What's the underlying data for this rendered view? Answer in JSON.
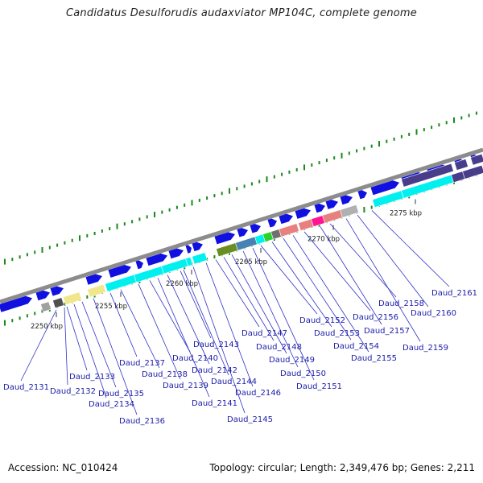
{
  "title": "Candidatus Desulforudis audaxviator MP104C, complete genome",
  "footer": {
    "accession": "Accession: NC_010424",
    "summary": "Topology: circular; Length: 2,349,476 bp; Genes: 2,211"
  },
  "scale_labels": [
    "2250 kbp",
    "2255 kbp",
    "2260 kbp",
    "2265 kbp",
    "2270 kbp",
    "2275 kbp"
  ],
  "genes": [
    "Daud_2131",
    "Daud_2132",
    "Daud_2133",
    "Daud_2134",
    "Daud_2135",
    "Daud_2136",
    "Daud_2137",
    "Daud_2138",
    "Daud_2139",
    "Daud_2140",
    "Daud_2141",
    "Daud_2142",
    "Daud_2143",
    "Daud_2144",
    "Daud_2145",
    "Daud_2146",
    "Daud_2147",
    "Daud_2148",
    "Daud_2149",
    "Daud_2150",
    "Daud_2151",
    "Daud_2152",
    "Daud_2153",
    "Daud_2154",
    "Daud_2155",
    "Daud_2156",
    "Daud_2157",
    "Daud_2158",
    "Daud_2159",
    "Daud_2160",
    "Daud_2161"
  ],
  "colors": {
    "backbone": "#8c8c8c",
    "forward_strand": "#1010e0",
    "label_text": "#1c1ca8",
    "leader_line": "#3030c8",
    "gc_dots": "#1a8a1a",
    "cyan_feature": "#00f0f0",
    "khaki_feature": "#f0e68c",
    "olive_feature": "#6b8e23",
    "steelblue_feature": "#4682b4",
    "salmon_feature": "#e88080",
    "pink_feature": "#ff1493",
    "slate_feature": "#483d8b"
  }
}
